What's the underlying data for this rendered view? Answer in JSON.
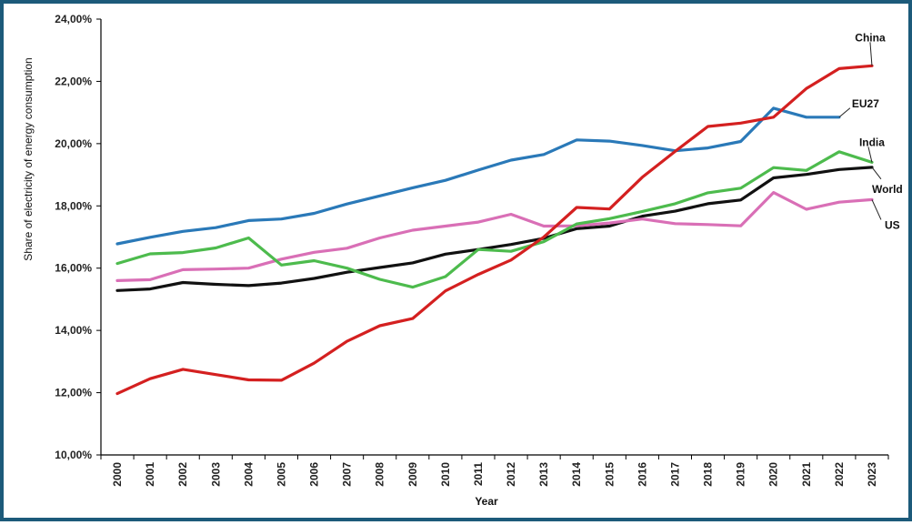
{
  "chart_data": {
    "type": "line",
    "title": "",
    "xlabel": "Year",
    "ylabel": "Share of electricity of energy consumption",
    "ylim": [
      10,
      24
    ],
    "yticks": [
      "10,00%",
      "12,00%",
      "14,00%",
      "16,00%",
      "18,00%",
      "20,00%",
      "22,00%",
      "24,00%"
    ],
    "grid": false,
    "x": [
      "2000",
      "2001",
      "2002",
      "2003",
      "2004",
      "2005",
      "2006",
      "2007",
      "2008",
      "2009",
      "2010",
      "2011",
      "2012",
      "2013",
      "2014",
      "2015",
      "2016",
      "2017",
      "2018",
      "2019",
      "2020",
      "2021",
      "2022",
      "2023"
    ],
    "series": [
      {
        "name": "China",
        "color": "#d42020",
        "values": [
          11.97,
          12.45,
          12.75,
          12.58,
          12.41,
          12.4,
          12.95,
          13.65,
          14.15,
          14.38,
          15.27,
          15.8,
          16.26,
          17.0,
          17.95,
          17.9,
          18.92,
          19.75,
          20.55,
          20.66,
          20.85,
          21.77,
          22.41,
          22.5
        ]
      },
      {
        "name": "EU27",
        "color": "#2a79b8",
        "values": [
          16.78,
          16.99,
          17.18,
          17.3,
          17.53,
          17.58,
          17.76,
          18.06,
          18.32,
          18.58,
          18.82,
          19.15,
          19.47,
          19.65,
          20.12,
          20.08,
          19.94,
          19.77,
          19.86,
          20.07,
          21.14,
          20.85,
          20.85,
          null
        ]
      },
      {
        "name": "India",
        "color": "#4dbb4d",
        "values": [
          16.15,
          16.46,
          16.5,
          16.65,
          16.97,
          16.1,
          16.24,
          16.0,
          15.64,
          15.39,
          15.73,
          16.6,
          16.54,
          16.85,
          17.42,
          17.59,
          17.82,
          18.07,
          18.42,
          18.57,
          19.23,
          19.14,
          19.74,
          19.4
        ]
      },
      {
        "name": "World",
        "color": "#111111",
        "values": [
          15.28,
          15.33,
          15.54,
          15.48,
          15.44,
          15.52,
          15.67,
          15.87,
          16.02,
          16.17,
          16.45,
          16.6,
          16.76,
          16.96,
          17.27,
          17.35,
          17.67,
          17.83,
          18.07,
          18.19,
          18.9,
          19.01,
          19.17,
          19.24
        ]
      },
      {
        "name": "US",
        "color": "#d96fb6",
        "values": [
          15.6,
          15.63,
          15.95,
          15.97,
          16.0,
          16.29,
          16.51,
          16.64,
          16.97,
          17.22,
          17.35,
          17.48,
          17.73,
          17.35,
          17.36,
          17.45,
          17.58,
          17.43,
          17.4,
          17.36,
          18.43,
          17.89,
          18.12,
          18.2
        ]
      }
    ]
  }
}
